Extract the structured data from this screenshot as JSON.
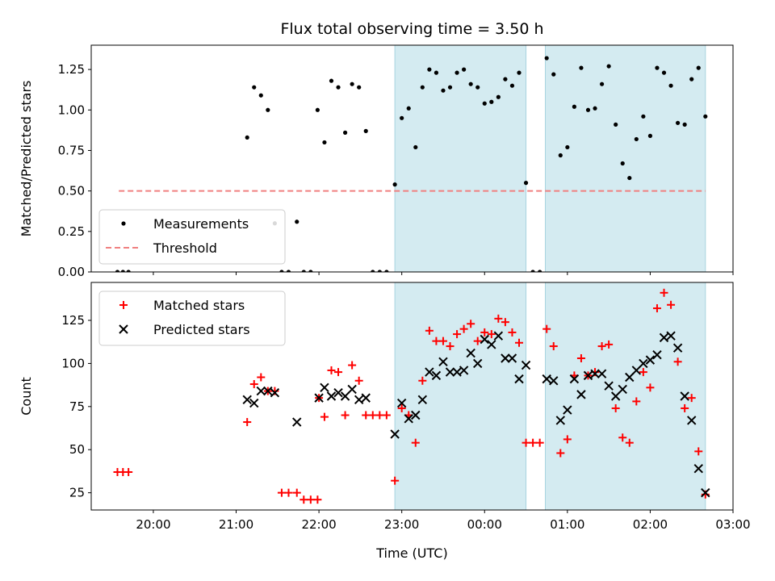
{
  "chart_data": [
    {
      "type": "scatter",
      "title": "Flux total observing time = 3.50 h",
      "xlabel": "",
      "ylabel": "Matched/Predicted stars",
      "xlim": [
        "19:15",
        "03:00"
      ],
      "ylim": [
        0,
        1.4
      ],
      "yticks": [
        "0.00",
        "0.25",
        "0.50",
        "0.75",
        "1.00",
        "1.25"
      ],
      "shaded_intervals": [
        [
          "22:55",
          "00:30"
        ],
        [
          "00:44",
          "02:40"
        ]
      ],
      "shade_color": "#d4ebf1",
      "legend_position": "lower-left",
      "series": [
        {
          "name": "Measurements",
          "marker": "dot",
          "color": "#000000",
          "points": [
            [
              "19:34",
              0
            ],
            [
              "19:38",
              0
            ],
            [
              "19:42",
              0
            ],
            [
              "21:08",
              0.83
            ],
            [
              "21:13",
              1.14
            ],
            [
              "21:18",
              1.09
            ],
            [
              "21:23",
              1.0
            ],
            [
              "21:28",
              0.3
            ],
            [
              "21:33",
              0
            ],
            [
              "21:38",
              0
            ],
            [
              "21:44",
              0.31
            ],
            [
              "21:49",
              0
            ],
            [
              "21:54",
              0
            ],
            [
              "21:59",
              1.0
            ],
            [
              "22:04",
              0.8
            ],
            [
              "22:09",
              1.18
            ],
            [
              "22:14",
              1.14
            ],
            [
              "22:19",
              0.86
            ],
            [
              "22:24",
              1.16
            ],
            [
              "22:29",
              1.14
            ],
            [
              "22:34",
              0.87
            ],
            [
              "22:39",
              0
            ],
            [
              "22:44",
              0
            ],
            [
              "22:49",
              0
            ],
            [
              "22:55",
              0.54
            ],
            [
              "23:00",
              0.95
            ],
            [
              "23:05",
              1.01
            ],
            [
              "23:10",
              0.77
            ],
            [
              "23:15",
              1.14
            ],
            [
              "23:20",
              1.25
            ],
            [
              "23:25",
              1.23
            ],
            [
              "23:30",
              1.12
            ],
            [
              "23:35",
              1.14
            ],
            [
              "23:40",
              1.23
            ],
            [
              "23:45",
              1.25
            ],
            [
              "23:50",
              1.16
            ],
            [
              "23:55",
              1.14
            ],
            [
              "00:00",
              1.04
            ],
            [
              "00:05",
              1.05
            ],
            [
              "00:10",
              1.08
            ],
            [
              "00:15",
              1.19
            ],
            [
              "00:20",
              1.15
            ],
            [
              "00:25",
              1.23
            ],
            [
              "00:30",
              0.55
            ],
            [
              "00:35",
              0
            ],
            [
              "00:40",
              0
            ],
            [
              "00:45",
              1.32
            ],
            [
              "00:50",
              1.22
            ],
            [
              "00:55",
              0.72
            ],
            [
              "01:00",
              0.77
            ],
            [
              "01:05",
              1.02
            ],
            [
              "01:10",
              1.26
            ],
            [
              "01:15",
              1.0
            ],
            [
              "01:20",
              1.01
            ],
            [
              "01:25",
              1.16
            ],
            [
              "01:30",
              1.27
            ],
            [
              "01:35",
              0.91
            ],
            [
              "01:40",
              0.67
            ],
            [
              "01:45",
              0.58
            ],
            [
              "01:50",
              0.82
            ],
            [
              "01:55",
              0.96
            ],
            [
              "02:00",
              0.84
            ],
            [
              "02:05",
              1.26
            ],
            [
              "02:10",
              1.23
            ],
            [
              "02:15",
              1.15
            ],
            [
              "02:20",
              0.92
            ],
            [
              "02:25",
              0.91
            ],
            [
              "02:30",
              1.19
            ],
            [
              "02:35",
              1.26
            ],
            [
              "02:40",
              0.96
            ]
          ]
        },
        {
          "name": "Threshold",
          "style": "dashed",
          "color": "#f08080",
          "points": [
            [
              "19:35",
              0.5
            ],
            [
              "02:40",
              0.5
            ]
          ]
        }
      ]
    },
    {
      "type": "scatter",
      "title": "",
      "xlabel": "Time (UTC)",
      "ylabel": "Count",
      "xlim": [
        "19:15",
        "03:00"
      ],
      "ylim": [
        15,
        147
      ],
      "yticks": [
        "25",
        "50",
        "75",
        "100",
        "125"
      ],
      "xticks": [
        "20:00",
        "21:00",
        "22:00",
        "23:00",
        "00:00",
        "01:00",
        "02:00",
        "03:00"
      ],
      "shaded_intervals": [
        [
          "22:55",
          "00:30"
        ],
        [
          "00:44",
          "02:40"
        ]
      ],
      "shade_color": "#d4ebf1",
      "legend_position": "top-left",
      "series": [
        {
          "name": "Matched stars",
          "marker": "plus",
          "color": "#ff0000",
          "points": [
            [
              "19:34",
              37
            ],
            [
              "19:38",
              37
            ],
            [
              "19:42",
              37
            ],
            [
              "21:08",
              66
            ],
            [
              "21:13",
              88
            ],
            [
              "21:18",
              92
            ],
            [
              "21:23",
              84
            ],
            [
              "21:28",
              84
            ],
            [
              "21:33",
              25
            ],
            [
              "21:38",
              25
            ],
            [
              "21:44",
              25
            ],
            [
              "21:49",
              21
            ],
            [
              "21:54",
              21
            ],
            [
              "21:59",
              21
            ],
            [
              "22:00",
              80
            ],
            [
              "22:04",
              69
            ],
            [
              "22:09",
              96
            ],
            [
              "22:14",
              95
            ],
            [
              "22:19",
              70
            ],
            [
              "22:24",
              99
            ],
            [
              "22:29",
              90
            ],
            [
              "22:34",
              70
            ],
            [
              "22:39",
              70
            ],
            [
              "22:44",
              70
            ],
            [
              "22:49",
              70
            ],
            [
              "22:55",
              32
            ],
            [
              "23:00",
              74
            ],
            [
              "23:05",
              70
            ],
            [
              "23:10",
              54
            ],
            [
              "23:15",
              90
            ],
            [
              "23:20",
              119
            ],
            [
              "23:25",
              113
            ],
            [
              "23:30",
              113
            ],
            [
              "23:35",
              110
            ],
            [
              "23:40",
              117
            ],
            [
              "23:45",
              120
            ],
            [
              "23:50",
              123
            ],
            [
              "23:55",
              113
            ],
            [
              "00:00",
              118
            ],
            [
              "00:05",
              117
            ],
            [
              "00:10",
              126
            ],
            [
              "00:15",
              124
            ],
            [
              "00:20",
              118
            ],
            [
              "00:25",
              112
            ],
            [
              "00:30",
              54
            ],
            [
              "00:35",
              54
            ],
            [
              "00:40",
              54
            ],
            [
              "00:45",
              120
            ],
            [
              "00:50",
              110
            ],
            [
              "00:55",
              48
            ],
            [
              "01:00",
              56
            ],
            [
              "01:05",
              93
            ],
            [
              "01:10",
              103
            ],
            [
              "01:15",
              93
            ],
            [
              "01:20",
              95
            ],
            [
              "01:25",
              110
            ],
            [
              "01:30",
              111
            ],
            [
              "01:35",
              74
            ],
            [
              "01:40",
              57
            ],
            [
              "01:45",
              54
            ],
            [
              "01:50",
              78
            ],
            [
              "01:55",
              95
            ],
            [
              "02:00",
              86
            ],
            [
              "02:05",
              132
            ],
            [
              "02:10",
              141
            ],
            [
              "02:15",
              134
            ],
            [
              "02:20",
              101
            ],
            [
              "02:25",
              74
            ],
            [
              "02:30",
              80
            ],
            [
              "02:35",
              49
            ],
            [
              "02:40",
              24
            ]
          ]
        },
        {
          "name": "Predicted stars",
          "marker": "x",
          "color": "#000000",
          "points": [
            [
              "21:08",
              79
            ],
            [
              "21:13",
              77
            ],
            [
              "21:18",
              84
            ],
            [
              "21:23",
              84
            ],
            [
              "21:28",
              83
            ],
            [
              "21:44",
              66
            ],
            [
              "22:00",
              80
            ],
            [
              "22:04",
              86
            ],
            [
              "22:09",
              81
            ],
            [
              "22:14",
              83
            ],
            [
              "22:19",
              81
            ],
            [
              "22:24",
              85
            ],
            [
              "22:29",
              79
            ],
            [
              "22:34",
              80
            ],
            [
              "22:55",
              59
            ],
            [
              "23:00",
              77
            ],
            [
              "23:05",
              68
            ],
            [
              "23:10",
              70
            ],
            [
              "23:15",
              79
            ],
            [
              "23:20",
              95
            ],
            [
              "23:25",
              93
            ],
            [
              "23:30",
              101
            ],
            [
              "23:35",
              95
            ],
            [
              "23:40",
              95
            ],
            [
              "23:45",
              96
            ],
            [
              "23:50",
              106
            ],
            [
              "23:55",
              100
            ],
            [
              "00:00",
              114
            ],
            [
              "00:05",
              111
            ],
            [
              "00:10",
              116
            ],
            [
              "00:15",
              103
            ],
            [
              "00:20",
              103
            ],
            [
              "00:25",
              91
            ],
            [
              "00:30",
              99
            ],
            [
              "00:45",
              91
            ],
            [
              "00:50",
              90
            ],
            [
              "00:55",
              67
            ],
            [
              "01:00",
              73
            ],
            [
              "01:05",
              91
            ],
            [
              "01:10",
              82
            ],
            [
              "01:15",
              93
            ],
            [
              "01:20",
              94
            ],
            [
              "01:25",
              94
            ],
            [
              "01:30",
              87
            ],
            [
              "01:35",
              81
            ],
            [
              "01:40",
              85
            ],
            [
              "01:45",
              92
            ],
            [
              "01:50",
              96
            ],
            [
              "01:55",
              100
            ],
            [
              "02:00",
              102
            ],
            [
              "02:05",
              105
            ],
            [
              "02:10",
              115
            ],
            [
              "02:15",
              116
            ],
            [
              "02:20",
              109
            ],
            [
              "02:25",
              81
            ],
            [
              "02:30",
              67
            ],
            [
              "02:35",
              39
            ],
            [
              "02:40",
              25
            ]
          ]
        }
      ]
    }
  ]
}
